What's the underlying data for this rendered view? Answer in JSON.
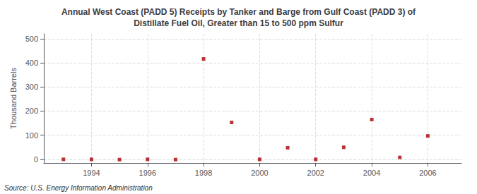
{
  "chart_data": {
    "type": "scatter",
    "title": "Annual West Coast (PADD 5) Receipts by Tanker and Barge from Gulf Coast (PADD 3) of\nDistillate Fuel Oil, Greater than 15 to 500 ppm Sulfur",
    "ylabel": "Thousand Barrels",
    "annotation": "Source: U.S. Energy Information Administration",
    "x": [
      1993,
      1994,
      1995,
      1996,
      1997,
      1998,
      1999,
      2000,
      2001,
      2002,
      2003,
      2004,
      2005,
      2006
    ],
    "values": [
      0,
      0,
      -1,
      0,
      -1,
      416,
      153,
      0,
      48,
      0,
      50,
      165,
      8,
      97
    ],
    "color": "#aa0000",
    "marker": "square",
    "xlim": [
      1992.3,
      2007.2
    ],
    "xticks": [
      1994,
      1996,
      1998,
      2000,
      2002,
      2004,
      2006
    ],
    "ylim": [
      -15,
      520
    ],
    "yticks": [
      0,
      100,
      200,
      300,
      400,
      500
    ],
    "grid": true
  }
}
